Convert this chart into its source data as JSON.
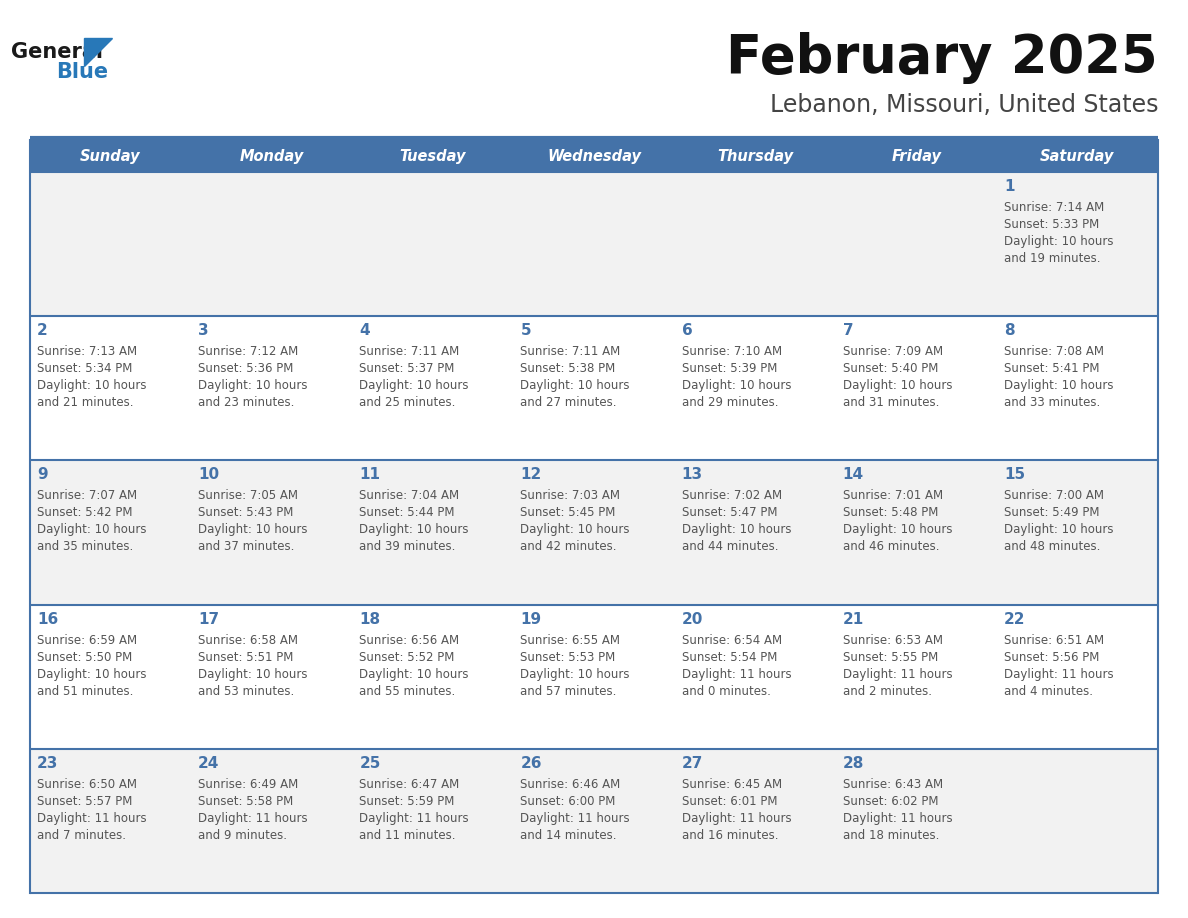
{
  "title": "February 2025",
  "subtitle": "Lebanon, Missouri, United States",
  "days_of_week": [
    "Sunday",
    "Monday",
    "Tuesday",
    "Wednesday",
    "Thursday",
    "Friday",
    "Saturday"
  ],
  "header_bg": "#4472a8",
  "header_text": "#ffffff",
  "row_bg_odd": "#f2f2f2",
  "row_bg_even": "#ffffff",
  "day_number_color": "#4472a8",
  "cell_text_color": "#555555",
  "border_color": "#4472a8",
  "title_color": "#111111",
  "subtitle_color": "#444444",
  "logo_general_color": "#1a1a1a",
  "logo_blue_color": "#2878b8",
  "calendar_data": [
    [
      null,
      null,
      null,
      null,
      null,
      null,
      {
        "day": 1,
        "sunrise": "7:14 AM",
        "sunset": "5:33 PM",
        "daylight_h": "10 hours",
        "daylight_m": "and 19 minutes."
      }
    ],
    [
      {
        "day": 2,
        "sunrise": "7:13 AM",
        "sunset": "5:34 PM",
        "daylight_h": "10 hours",
        "daylight_m": "and 21 minutes."
      },
      {
        "day": 3,
        "sunrise": "7:12 AM",
        "sunset": "5:36 PM",
        "daylight_h": "10 hours",
        "daylight_m": "and 23 minutes."
      },
      {
        "day": 4,
        "sunrise": "7:11 AM",
        "sunset": "5:37 PM",
        "daylight_h": "10 hours",
        "daylight_m": "and 25 minutes."
      },
      {
        "day": 5,
        "sunrise": "7:11 AM",
        "sunset": "5:38 PM",
        "daylight_h": "10 hours",
        "daylight_m": "and 27 minutes."
      },
      {
        "day": 6,
        "sunrise": "7:10 AM",
        "sunset": "5:39 PM",
        "daylight_h": "10 hours",
        "daylight_m": "and 29 minutes."
      },
      {
        "day": 7,
        "sunrise": "7:09 AM",
        "sunset": "5:40 PM",
        "daylight_h": "10 hours",
        "daylight_m": "and 31 minutes."
      },
      {
        "day": 8,
        "sunrise": "7:08 AM",
        "sunset": "5:41 PM",
        "daylight_h": "10 hours",
        "daylight_m": "and 33 minutes."
      }
    ],
    [
      {
        "day": 9,
        "sunrise": "7:07 AM",
        "sunset": "5:42 PM",
        "daylight_h": "10 hours",
        "daylight_m": "and 35 minutes."
      },
      {
        "day": 10,
        "sunrise": "7:05 AM",
        "sunset": "5:43 PM",
        "daylight_h": "10 hours",
        "daylight_m": "and 37 minutes."
      },
      {
        "day": 11,
        "sunrise": "7:04 AM",
        "sunset": "5:44 PM",
        "daylight_h": "10 hours",
        "daylight_m": "and 39 minutes."
      },
      {
        "day": 12,
        "sunrise": "7:03 AM",
        "sunset": "5:45 PM",
        "daylight_h": "10 hours",
        "daylight_m": "and 42 minutes."
      },
      {
        "day": 13,
        "sunrise": "7:02 AM",
        "sunset": "5:47 PM",
        "daylight_h": "10 hours",
        "daylight_m": "and 44 minutes."
      },
      {
        "day": 14,
        "sunrise": "7:01 AM",
        "sunset": "5:48 PM",
        "daylight_h": "10 hours",
        "daylight_m": "and 46 minutes."
      },
      {
        "day": 15,
        "sunrise": "7:00 AM",
        "sunset": "5:49 PM",
        "daylight_h": "10 hours",
        "daylight_m": "and 48 minutes."
      }
    ],
    [
      {
        "day": 16,
        "sunrise": "6:59 AM",
        "sunset": "5:50 PM",
        "daylight_h": "10 hours",
        "daylight_m": "and 51 minutes."
      },
      {
        "day": 17,
        "sunrise": "6:58 AM",
        "sunset": "5:51 PM",
        "daylight_h": "10 hours",
        "daylight_m": "and 53 minutes."
      },
      {
        "day": 18,
        "sunrise": "6:56 AM",
        "sunset": "5:52 PM",
        "daylight_h": "10 hours",
        "daylight_m": "and 55 minutes."
      },
      {
        "day": 19,
        "sunrise": "6:55 AM",
        "sunset": "5:53 PM",
        "daylight_h": "10 hours",
        "daylight_m": "and 57 minutes."
      },
      {
        "day": 20,
        "sunrise": "6:54 AM",
        "sunset": "5:54 PM",
        "daylight_h": "11 hours",
        "daylight_m": "and 0 minutes."
      },
      {
        "day": 21,
        "sunrise": "6:53 AM",
        "sunset": "5:55 PM",
        "daylight_h": "11 hours",
        "daylight_m": "and 2 minutes."
      },
      {
        "day": 22,
        "sunrise": "6:51 AM",
        "sunset": "5:56 PM",
        "daylight_h": "11 hours",
        "daylight_m": "and 4 minutes."
      }
    ],
    [
      {
        "day": 23,
        "sunrise": "6:50 AM",
        "sunset": "5:57 PM",
        "daylight_h": "11 hours",
        "daylight_m": "and 7 minutes."
      },
      {
        "day": 24,
        "sunrise": "6:49 AM",
        "sunset": "5:58 PM",
        "daylight_h": "11 hours",
        "daylight_m": "and 9 minutes."
      },
      {
        "day": 25,
        "sunrise": "6:47 AM",
        "sunset": "5:59 PM",
        "daylight_h": "11 hours",
        "daylight_m": "and 11 minutes."
      },
      {
        "day": 26,
        "sunrise": "6:46 AM",
        "sunset": "6:00 PM",
        "daylight_h": "11 hours",
        "daylight_m": "and 14 minutes."
      },
      {
        "day": 27,
        "sunrise": "6:45 AM",
        "sunset": "6:01 PM",
        "daylight_h": "11 hours",
        "daylight_m": "and 16 minutes."
      },
      {
        "day": 28,
        "sunrise": "6:43 AM",
        "sunset": "6:02 PM",
        "daylight_h": "11 hours",
        "daylight_m": "and 18 minutes."
      },
      null
    ]
  ]
}
